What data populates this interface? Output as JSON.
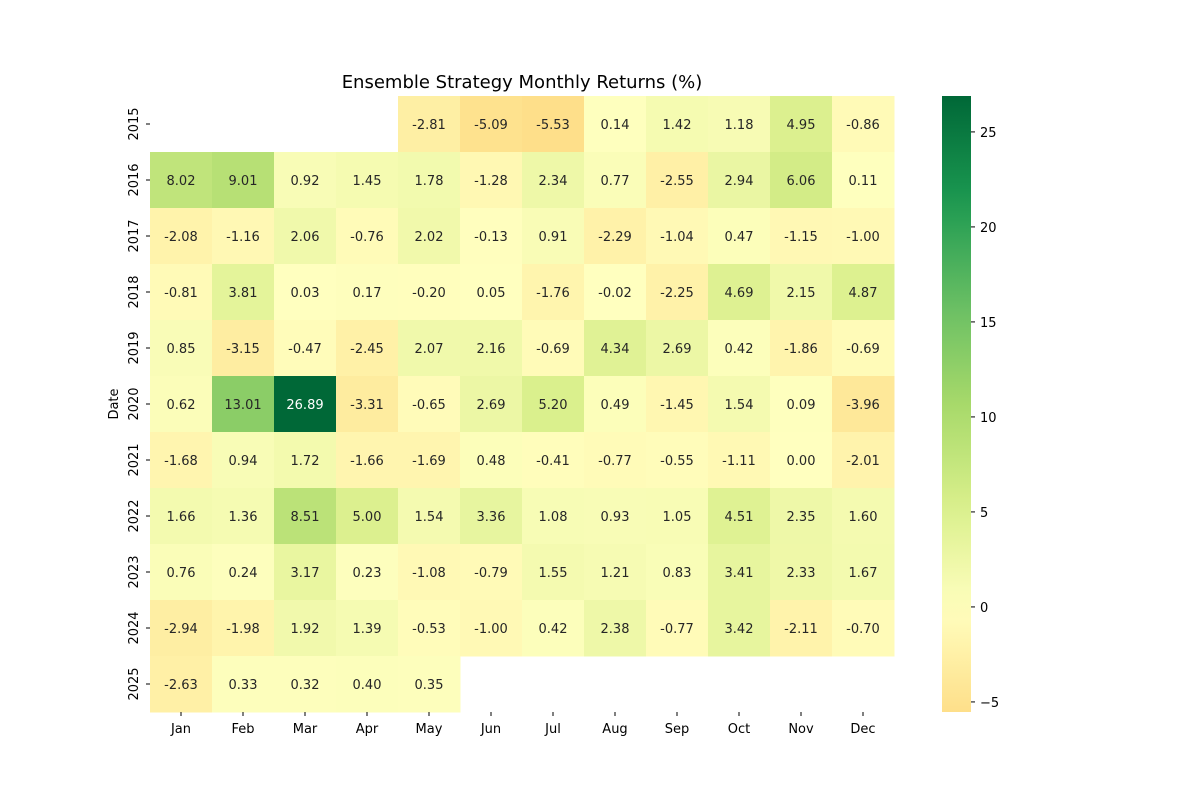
{
  "chart_data": {
    "type": "heatmap",
    "title": "Ensemble Strategy Monthly Returns (%)",
    "xlabel": "",
    "ylabel": "Date",
    "columns": [
      "Jan",
      "Feb",
      "Mar",
      "Apr",
      "May",
      "Jun",
      "Jul",
      "Aug",
      "Sep",
      "Oct",
      "Nov",
      "Dec"
    ],
    "rows": [
      "2015",
      "2016",
      "2017",
      "2018",
      "2019",
      "2020",
      "2021",
      "2022",
      "2023",
      "2024",
      "2025"
    ],
    "values": [
      [
        null,
        null,
        null,
        null,
        -2.81,
        -5.09,
        -5.53,
        0.14,
        1.42,
        1.18,
        4.95,
        -0.86
      ],
      [
        8.02,
        9.01,
        0.92,
        1.45,
        1.78,
        -1.28,
        2.34,
        0.77,
        -2.55,
        2.94,
        6.06,
        0.11
      ],
      [
        -2.08,
        -1.16,
        2.06,
        -0.76,
        2.02,
        -0.13,
        0.91,
        -2.29,
        -1.04,
        0.47,
        -1.15,
        -1.0
      ],
      [
        -0.81,
        3.81,
        0.03,
        0.17,
        -0.2,
        0.05,
        -1.76,
        -0.02,
        -2.25,
        4.69,
        2.15,
        4.87
      ],
      [
        0.85,
        -3.15,
        -0.47,
        -2.45,
        2.07,
        2.16,
        -0.69,
        4.34,
        2.69,
        0.42,
        -1.86,
        -0.69
      ],
      [
        0.62,
        13.01,
        26.89,
        -3.31,
        -0.65,
        2.69,
        5.2,
        0.49,
        -1.45,
        1.54,
        0.09,
        -3.96
      ],
      [
        -1.68,
        0.94,
        1.72,
        -1.66,
        -1.69,
        0.48,
        -0.41,
        -0.77,
        -0.55,
        -1.11,
        -0.0,
        -2.01
      ],
      [
        1.66,
        1.36,
        8.51,
        5.0,
        1.54,
        3.36,
        1.08,
        0.93,
        1.05,
        4.51,
        2.35,
        1.6
      ],
      [
        0.76,
        0.24,
        3.17,
        0.23,
        -1.08,
        -0.79,
        1.55,
        1.21,
        0.83,
        3.41,
        2.33,
        1.67
      ],
      [
        -2.94,
        -1.98,
        1.92,
        1.39,
        -0.53,
        -1.0,
        0.42,
        2.38,
        -0.77,
        3.42,
        -2.11,
        -0.7
      ],
      [
        -2.63,
        0.33,
        0.32,
        0.4,
        0.35,
        null,
        null,
        null,
        null,
        null,
        null,
        null
      ]
    ],
    "colorbar": {
      "range": [
        -5.53,
        26.89
      ],
      "ticks": [
        -5,
        0,
        5,
        10,
        15,
        20,
        25
      ],
      "colormap": "RdYlGn",
      "center": 0
    },
    "grid": false
  }
}
